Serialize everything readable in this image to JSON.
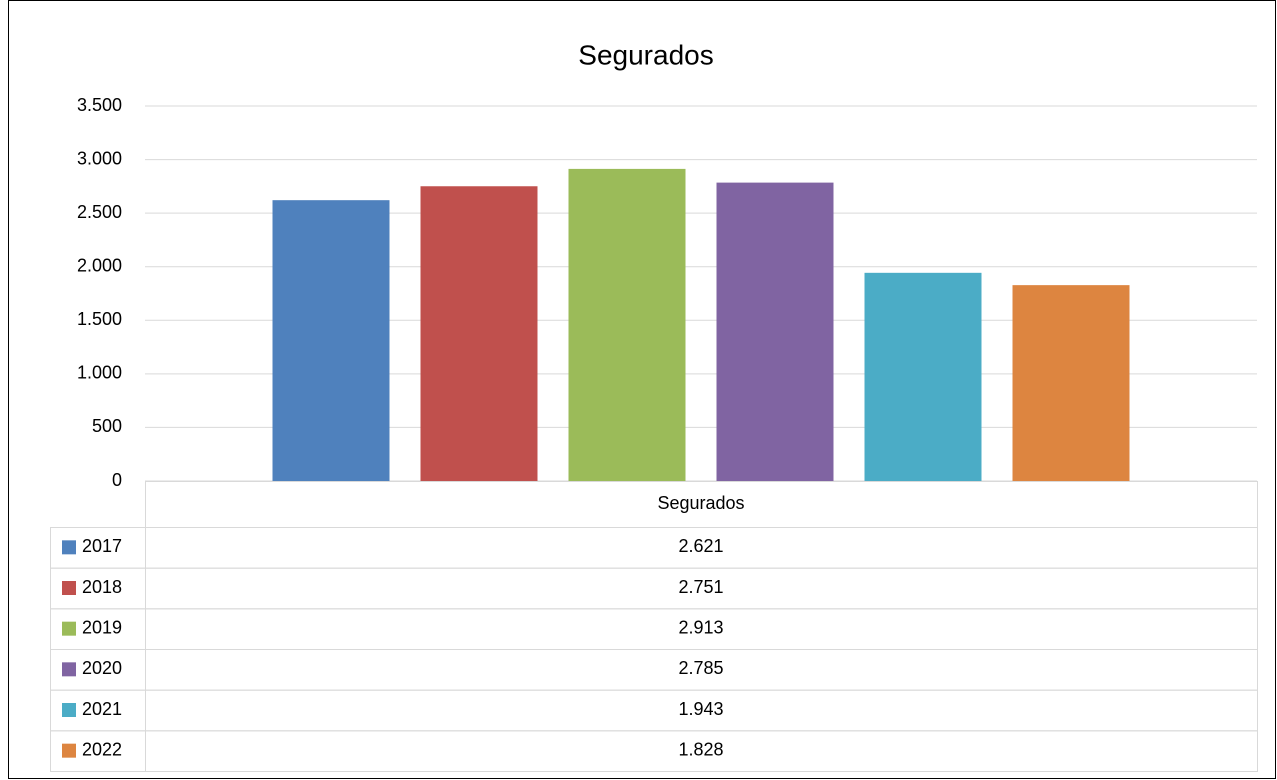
{
  "chart_data": {
    "type": "bar",
    "title": "Segurados",
    "categories": [
      "Segurados"
    ],
    "series": [
      {
        "name": "2017",
        "color": "#4f81bd",
        "values": [
          2621
        ],
        "value_labels": [
          "2.621"
        ]
      },
      {
        "name": "2018",
        "color": "#c0504d",
        "values": [
          2751
        ],
        "value_labels": [
          "2.751"
        ]
      },
      {
        "name": "2019",
        "color": "#9bbb59",
        "values": [
          2913
        ],
        "value_labels": [
          "2.913"
        ]
      },
      {
        "name": "2020",
        "color": "#8064a2",
        "values": [
          2785
        ],
        "value_labels": [
          "2.785"
        ]
      },
      {
        "name": "2021",
        "color": "#4bacc6",
        "values": [
          1943
        ],
        "value_labels": [
          "1.943"
        ]
      },
      {
        "name": "2022",
        "color": "#dd8540",
        "values": [
          1828
        ],
        "value_labels": [
          "1.828"
        ]
      }
    ],
    "ylim": [
      0,
      3500
    ],
    "yticks": [
      0,
      500,
      {
        "value": 1000,
        "label": "1.000"
      },
      {
        "value": 1500,
        "label": "1.500"
      },
      {
        "value": 2000,
        "label": "2.000"
      },
      {
        "value": 2500,
        "label": "2.500"
      },
      {
        "value": 3000,
        "label": "3.000"
      },
      {
        "value": 3500,
        "label": "3.500"
      }
    ],
    "grid": true,
    "legend": "data-table"
  }
}
